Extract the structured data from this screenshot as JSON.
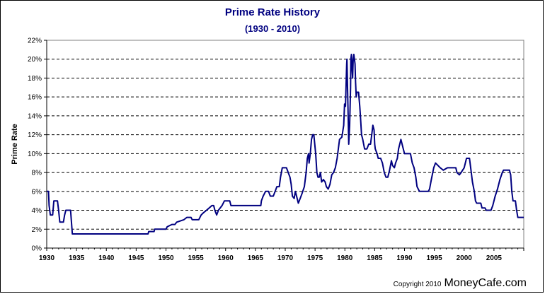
{
  "chart_data": {
    "type": "line",
    "title": "Prime Rate History",
    "subtitle": "(1930 - 2010)",
    "xlabel": "",
    "ylabel": "Prime Rate",
    "xlim": [
      1930,
      2010
    ],
    "ylim": [
      0,
      22
    ],
    "x_ticks": [
      "1930",
      "1935",
      "1940",
      "1945",
      "1950",
      "1955",
      "1960",
      "1965",
      "1970",
      "1975",
      "1980",
      "1985",
      "1990",
      "1995",
      "2000",
      "2005"
    ],
    "y_ticks": [
      "0%",
      "2%",
      "4%",
      "6%",
      "8%",
      "10%",
      "12%",
      "14%",
      "16%",
      "18%",
      "20%",
      "22%"
    ],
    "grid": "horizontal dashed",
    "series": [
      {
        "color": "#000080",
        "points": [
          [
            1930.0,
            6.0
          ],
          [
            1930.3,
            6.0
          ],
          [
            1930.4,
            4.5
          ],
          [
            1930.6,
            3.5
          ],
          [
            1931.0,
            3.5
          ],
          [
            1931.2,
            5.0
          ],
          [
            1931.8,
            5.0
          ],
          [
            1932.0,
            4.0
          ],
          [
            1932.2,
            2.75
          ],
          [
            1932.8,
            2.75
          ],
          [
            1933.0,
            3.5
          ],
          [
            1933.2,
            4.0
          ],
          [
            1933.8,
            4.0
          ],
          [
            1934.0,
            4.0
          ],
          [
            1934.3,
            1.5
          ],
          [
            1947.0,
            1.5
          ],
          [
            1947.1,
            1.75
          ],
          [
            1948.0,
            1.75
          ],
          [
            1948.1,
            2.0
          ],
          [
            1950.0,
            2.0
          ],
          [
            1950.2,
            2.25
          ],
          [
            1951.0,
            2.5
          ],
          [
            1951.5,
            2.5
          ],
          [
            1951.8,
            2.75
          ],
          [
            1953.0,
            3.0
          ],
          [
            1953.5,
            3.25
          ],
          [
            1954.2,
            3.25
          ],
          [
            1954.4,
            3.0
          ],
          [
            1955.5,
            3.0
          ],
          [
            1955.7,
            3.25
          ],
          [
            1955.9,
            3.5
          ],
          [
            1956.3,
            3.75
          ],
          [
            1956.8,
            4.0
          ],
          [
            1957.7,
            4.5
          ],
          [
            1958.0,
            4.5
          ],
          [
            1958.2,
            4.0
          ],
          [
            1958.5,
            3.5
          ],
          [
            1958.8,
            4.0
          ],
          [
            1959.4,
            4.5
          ],
          [
            1959.8,
            5.0
          ],
          [
            1960.7,
            5.0
          ],
          [
            1960.9,
            4.5
          ],
          [
            1965.9,
            4.5
          ],
          [
            1966.0,
            5.0
          ],
          [
            1966.3,
            5.5
          ],
          [
            1966.7,
            6.0
          ],
          [
            1967.2,
            6.0
          ],
          [
            1967.5,
            5.5
          ],
          [
            1968.0,
            5.5
          ],
          [
            1968.3,
            6.0
          ],
          [
            1968.6,
            6.5
          ],
          [
            1969.0,
            6.5
          ],
          [
            1969.2,
            7.5
          ],
          [
            1969.5,
            8.5
          ],
          [
            1970.2,
            8.5
          ],
          [
            1970.5,
            8.0
          ],
          [
            1970.8,
            7.5
          ],
          [
            1971.0,
            6.75
          ],
          [
            1971.2,
            5.5
          ],
          [
            1971.5,
            5.25
          ],
          [
            1971.7,
            6.0
          ],
          [
            1971.9,
            5.5
          ],
          [
            1972.2,
            4.75
          ],
          [
            1972.5,
            5.25
          ],
          [
            1972.8,
            5.75
          ],
          [
            1973.2,
            6.5
          ],
          [
            1973.5,
            8.0
          ],
          [
            1973.7,
            9.5
          ],
          [
            1973.9,
            10.0
          ],
          [
            1974.0,
            9.0
          ],
          [
            1974.2,
            10.0
          ],
          [
            1974.4,
            11.5
          ],
          [
            1974.6,
            12.0
          ],
          [
            1974.8,
            12.0
          ],
          [
            1974.95,
            11.0
          ],
          [
            1975.1,
            10.0
          ],
          [
            1975.3,
            8.0
          ],
          [
            1975.5,
            7.5
          ],
          [
            1975.7,
            7.5
          ],
          [
            1975.9,
            8.0
          ],
          [
            1976.1,
            7.0
          ],
          [
            1976.4,
            7.25
          ],
          [
            1976.7,
            7.0
          ],
          [
            1976.9,
            6.5
          ],
          [
            1977.2,
            6.25
          ],
          [
            1977.5,
            6.75
          ],
          [
            1977.8,
            7.75
          ],
          [
            1978.1,
            8.0
          ],
          [
            1978.4,
            8.5
          ],
          [
            1978.7,
            9.5
          ],
          [
            1978.9,
            10.5
          ],
          [
            1979.1,
            11.5
          ],
          [
            1979.5,
            11.75
          ],
          [
            1979.8,
            13.0
          ],
          [
            1979.95,
            15.25
          ],
          [
            1980.1,
            15.0
          ],
          [
            1980.3,
            19.5
          ],
          [
            1980.35,
            20.0
          ],
          [
            1980.45,
            17.0
          ],
          [
            1980.55,
            14.0
          ],
          [
            1980.65,
            11.0
          ],
          [
            1980.8,
            13.0
          ],
          [
            1980.95,
            17.0
          ],
          [
            1981.0,
            20.0
          ],
          [
            1981.1,
            20.5
          ],
          [
            1981.2,
            19.0
          ],
          [
            1981.3,
            18.0
          ],
          [
            1981.4,
            20.0
          ],
          [
            1981.5,
            20.5
          ],
          [
            1981.7,
            19.5
          ],
          [
            1981.8,
            17.5
          ],
          [
            1981.9,
            16.0
          ],
          [
            1982.0,
            16.5
          ],
          [
            1982.3,
            16.5
          ],
          [
            1982.5,
            15.0
          ],
          [
            1982.6,
            14.0
          ],
          [
            1982.8,
            12.0
          ],
          [
            1983.0,
            11.5
          ],
          [
            1983.3,
            10.5
          ],
          [
            1983.7,
            10.5
          ],
          [
            1984.0,
            11.0
          ],
          [
            1984.3,
            11.0
          ],
          [
            1984.5,
            12.0
          ],
          [
            1984.7,
            13.0
          ],
          [
            1984.9,
            12.5
          ],
          [
            1985.0,
            11.0
          ],
          [
            1985.1,
            10.5
          ],
          [
            1985.4,
            10.0
          ],
          [
            1985.6,
            9.5
          ],
          [
            1986.0,
            9.5
          ],
          [
            1986.3,
            9.0
          ],
          [
            1986.6,
            8.0
          ],
          [
            1986.9,
            7.5
          ],
          [
            1987.2,
            7.5
          ],
          [
            1987.5,
            8.25
          ],
          [
            1987.8,
            9.25
          ],
          [
            1988.0,
            8.75
          ],
          [
            1988.3,
            8.5
          ],
          [
            1988.5,
            9.0
          ],
          [
            1988.8,
            9.5
          ],
          [
            1989.0,
            10.5
          ],
          [
            1989.2,
            11.0
          ],
          [
            1989.4,
            11.5
          ],
          [
            1989.6,
            11.0
          ],
          [
            1989.8,
            10.5
          ],
          [
            1990.0,
            10.0
          ],
          [
            1990.5,
            10.0
          ],
          [
            1991.0,
            10.0
          ],
          [
            1991.3,
            9.0
          ],
          [
            1991.6,
            8.5
          ],
          [
            1991.9,
            7.5
          ],
          [
            1992.1,
            6.5
          ],
          [
            1992.5,
            6.0
          ],
          [
            1993.0,
            6.0
          ],
          [
            1994.0,
            6.0
          ],
          [
            1994.2,
            6.25
          ],
          [
            1994.5,
            7.25
          ],
          [
            1994.9,
            8.5
          ],
          [
            1995.2,
            9.0
          ],
          [
            1995.6,
            8.75
          ],
          [
            1996.0,
            8.5
          ],
          [
            1996.5,
            8.25
          ],
          [
            1997.2,
            8.5
          ],
          [
            1998.0,
            8.5
          ],
          [
            1998.6,
            8.5
          ],
          [
            1998.8,
            8.0
          ],
          [
            1999.2,
            7.75
          ],
          [
            1999.5,
            8.0
          ],
          [
            2000.0,
            8.5
          ],
          [
            2000.4,
            9.5
          ],
          [
            2000.9,
            9.5
          ],
          [
            2001.1,
            8.5
          ],
          [
            2001.4,
            7.0
          ],
          [
            2001.7,
            6.0
          ],
          [
            2001.9,
            5.0
          ],
          [
            2002.1,
            4.75
          ],
          [
            2002.8,
            4.75
          ],
          [
            2003.0,
            4.25
          ],
          [
            2003.5,
            4.25
          ],
          [
            2003.7,
            4.0
          ],
          [
            2004.5,
            4.0
          ],
          [
            2004.8,
            4.5
          ],
          [
            2005.2,
            5.5
          ],
          [
            2005.6,
            6.25
          ],
          [
            2006.0,
            7.25
          ],
          [
            2006.4,
            8.0
          ],
          [
            2006.6,
            8.25
          ],
          [
            2007.6,
            8.25
          ],
          [
            2007.8,
            7.75
          ],
          [
            2008.0,
            6.0
          ],
          [
            2008.2,
            5.0
          ],
          [
            2008.6,
            5.0
          ],
          [
            2008.8,
            4.0
          ],
          [
            2009.0,
            3.25
          ],
          [
            2010.0,
            3.25
          ]
        ]
      }
    ]
  },
  "copyright": {
    "text": "Copyright 2010",
    "brand": "MoneyCafe.com"
  }
}
